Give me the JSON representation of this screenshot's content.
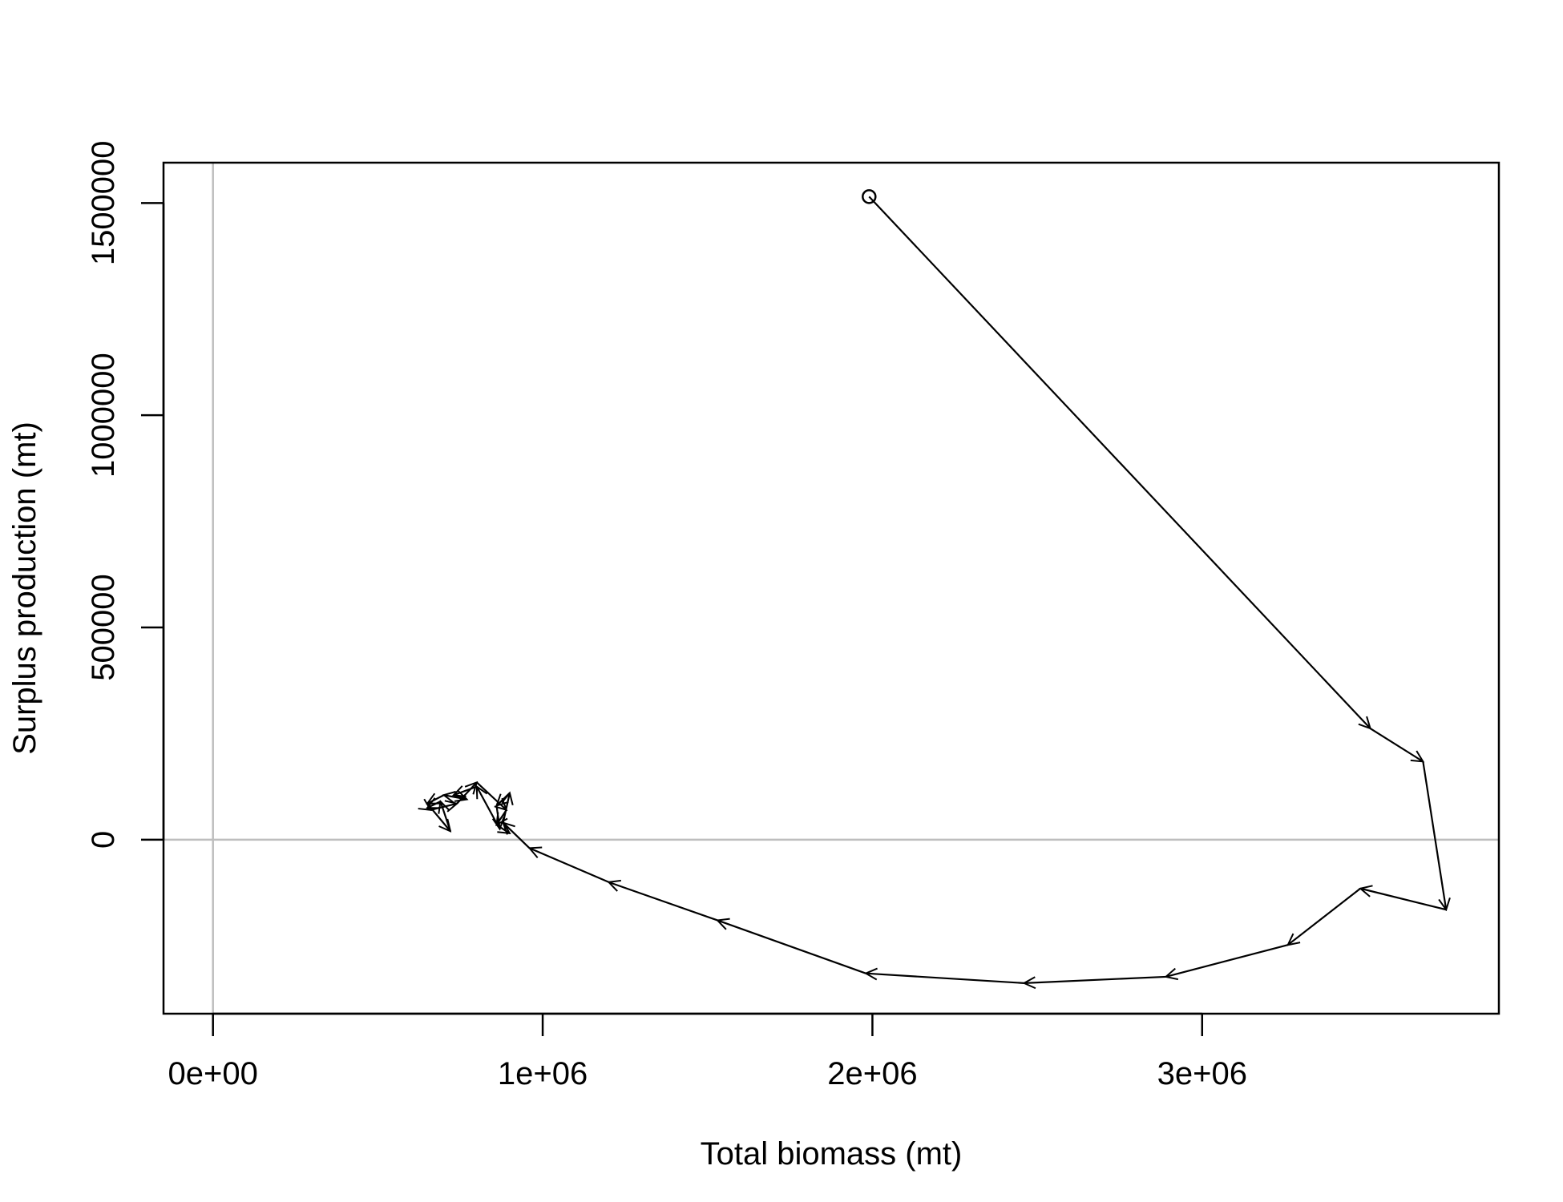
{
  "chart_data": {
    "type": "line",
    "title": "",
    "xlabel": "Total biomass (mt)",
    "ylabel": "Surplus production (mt)",
    "xlim": [
      -150000,
      3900000
    ],
    "ylim": [
      -410000,
      1595000
    ],
    "x_ticks": [
      0,
      1000000,
      2000000,
      3000000
    ],
    "x_tick_labels": [
      "0e+00",
      "1e+06",
      "2e+06",
      "3e+06"
    ],
    "y_ticks": [
      0,
      500000,
      1000000,
      1500000
    ],
    "y_tick_labels": [
      "0",
      "500000",
      "1000000",
      "1500000"
    ],
    "reference_lines": {
      "x": 0,
      "y": 0,
      "color": "#bebebe"
    },
    "grid": false,
    "start_marker": "open-circle",
    "line_color": "#000000",
    "series": [
      {
        "x": [
          1990000,
          3510000,
          3670000,
          3740000,
          3480000,
          3260000,
          2890000,
          2460000,
          1980000,
          1530000,
          1200000,
          960000,
          880000,
          900000,
          860000,
          870000,
          800000,
          730000,
          770000,
          700000,
          650000,
          720000,
          690000,
          650000,
          660000,
          740000,
          800000,
          890000,
          860000,
          900000
        ],
        "y": [
          1515000,
          262000,
          184000,
          -165000,
          -115000,
          -248000,
          -323000,
          -338000,
          -315000,
          -190000,
          -100000,
          -20000,
          40000,
          110000,
          80000,
          25000,
          125000,
          105000,
          95000,
          105000,
          85000,
          20000,
          90000,
          75000,
          70000,
          85000,
          135000,
          70000,
          35000,
          15000
        ]
      }
    ]
  }
}
